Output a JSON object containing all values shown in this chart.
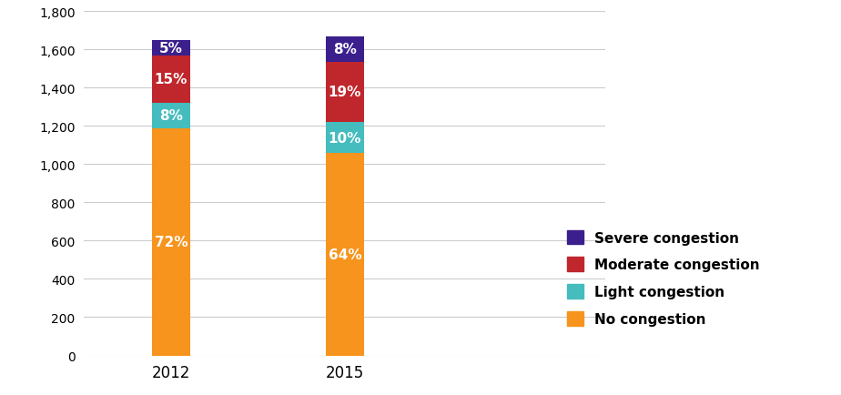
{
  "years": [
    "2012",
    "2015"
  ],
  "categories": [
    "No congestion",
    "Light congestion",
    "Moderate congestion",
    "Severe congestion"
  ],
  "colors": [
    "#F7941D",
    "#45BCBE",
    "#C0272D",
    "#3B1F8C"
  ],
  "values": {
    "2012": [
      1188,
      132,
      247.5,
      82.5
    ],
    "2015": [
      1056,
      165,
      313.5,
      132
    ]
  },
  "percentages": {
    "2012": [
      "72%",
      "8%",
      "15%",
      "5%"
    ],
    "2015": [
      "64%",
      "10%",
      "19%",
      "8%"
    ]
  },
  "ylim": [
    0,
    1800
  ],
  "yticks": [
    0,
    200,
    400,
    600,
    800,
    1000,
    1200,
    1400,
    1600,
    1800
  ],
  "background_color": "#FFFFFF",
  "grid_color": "#CCCCCC",
  "bar_width": 0.22,
  "label_color": "#FFFFFF",
  "label_fontsize": 11,
  "tick_fontsize": 10,
  "xlabel_fontsize": 12,
  "x_positions": [
    1,
    2
  ],
  "xlim": [
    0.5,
    3.5
  ]
}
